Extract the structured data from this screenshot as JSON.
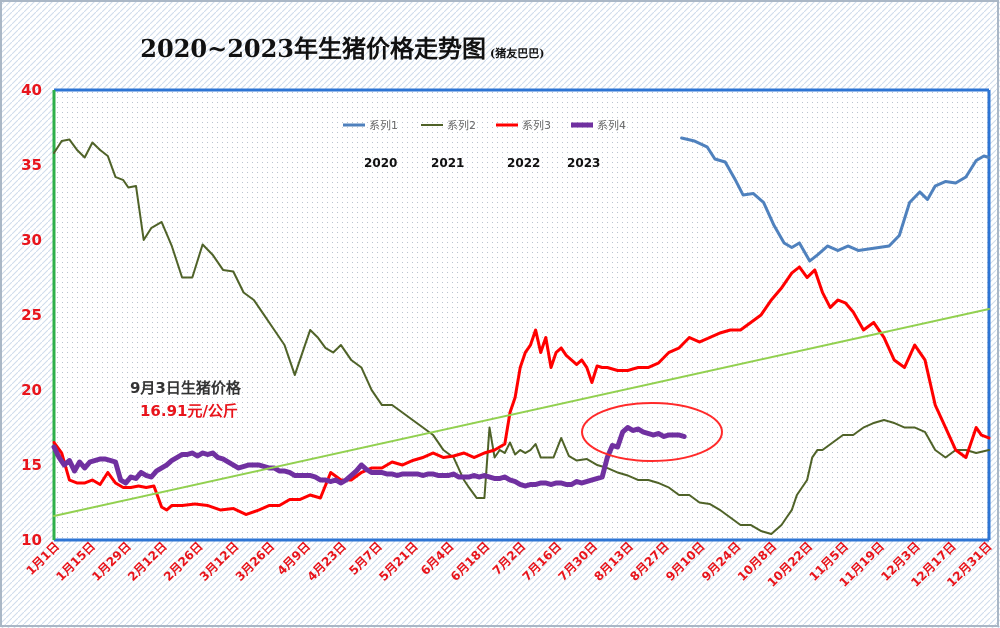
{
  "chart_data": {
    "type": "line",
    "title": "2020~2023年生猪价格走势图",
    "subtitle": "(猪友巴巴)",
    "ylim": [
      10,
      40
    ],
    "yticks": [
      "10",
      "15",
      "20",
      "25",
      "30",
      "35",
      "40"
    ],
    "xlim": [
      0,
      365
    ],
    "xticks": [
      {
        "label": "1月1日",
        "x": 0
      },
      {
        "label": "1月15日",
        "x": 14
      },
      {
        "label": "1月29日",
        "x": 28
      },
      {
        "label": "2月12日",
        "x": 42
      },
      {
        "label": "2月26日",
        "x": 56
      },
      {
        "label": "3月12日",
        "x": 70
      },
      {
        "label": "3月26日",
        "x": 84
      },
      {
        "label": "4月9日",
        "x": 98
      },
      {
        "label": "4月23日",
        "x": 112
      },
      {
        "label": "5月7日",
        "x": 126
      },
      {
        "label": "5月21日",
        "x": 140
      },
      {
        "label": "6月4日",
        "x": 154
      },
      {
        "label": "6月18日",
        "x": 168
      },
      {
        "label": "7月2日",
        "x": 182
      },
      {
        "label": "7月16日",
        "x": 196
      },
      {
        "label": "7月30日",
        "x": 210
      },
      {
        "label": "8月13日",
        "x": 224
      },
      {
        "label": "8月27日",
        "x": 238
      },
      {
        "label": "9月10日",
        "x": 252
      },
      {
        "label": "9月24日",
        "x": 266
      },
      {
        "label": "10月8日",
        "x": 280
      },
      {
        "label": "10月22日",
        "x": 294
      },
      {
        "label": "11月5日",
        "x": 308
      },
      {
        "label": "11月19日",
        "x": 322
      },
      {
        "label": "12月3日",
        "x": 336
      },
      {
        "label": "12月17日",
        "x": 350
      },
      {
        "label": "12月31日",
        "x": 364
      }
    ],
    "legend": {
      "placement": "top-center",
      "years": [
        "2020",
        "2021",
        "2022",
        "2023"
      ]
    },
    "series": [
      {
        "name": "系列1",
        "color": "#4f81bd",
        "width": 3,
        "x": [
          245,
          250,
          255,
          258,
          262,
          266,
          269,
          273,
          277,
          281,
          285,
          288,
          291,
          295,
          298,
          302,
          306,
          310,
          314,
          318,
          322,
          326,
          330,
          334,
          338,
          341,
          344,
          348,
          352,
          356,
          360,
          363,
          365
        ],
        "y": [
          36.8,
          36.6,
          36.2,
          35.4,
          35.2,
          34.0,
          33.0,
          33.1,
          32.5,
          31.0,
          29.8,
          29.5,
          29.8,
          28.6,
          29.0,
          29.6,
          29.3,
          29.6,
          29.3,
          29.4,
          29.5,
          29.6,
          30.3,
          32.5,
          33.2,
          32.7,
          33.6,
          33.9,
          33.8,
          34.2,
          35.3,
          35.6,
          35.5
        ]
      },
      {
        "name": "系列2",
        "color": "#4f6228",
        "width": 2,
        "x": [
          0,
          3,
          6,
          9,
          12,
          15,
          18,
          21,
          24,
          27,
          29,
          32,
          35,
          38,
          42,
          46,
          50,
          54,
          58,
          62,
          66,
          70,
          74,
          78,
          82,
          86,
          90,
          94,
          98,
          100,
          103,
          106,
          109,
          112,
          116,
          120,
          124,
          128,
          132,
          136,
          140,
          144,
          148,
          152,
          156,
          160,
          162,
          165,
          168,
          170,
          172,
          174,
          176,
          178,
          180,
          182,
          184,
          186,
          188,
          190,
          192,
          195,
          198,
          201,
          204,
          208,
          212,
          216,
          220,
          224,
          228,
          232,
          236,
          240,
          244,
          248,
          252,
          256,
          260,
          264,
          268,
          272,
          276,
          280,
          284,
          286,
          288,
          290,
          292,
          294,
          296,
          298,
          300,
          304,
          308,
          312,
          316,
          320,
          324,
          328,
          332,
          336,
          340,
          344,
          348,
          352,
          356,
          360,
          365
        ],
        "y": [
          35.8,
          36.6,
          36.7,
          36.0,
          35.5,
          36.5,
          36.0,
          35.6,
          34.2,
          34.0,
          33.5,
          33.6,
          30.0,
          30.8,
          31.2,
          29.6,
          27.5,
          27.5,
          29.7,
          29.0,
          28.0,
          27.9,
          26.5,
          26.0,
          25.0,
          24.0,
          23.0,
          21.0,
          23.0,
          24.0,
          23.5,
          22.8,
          22.5,
          23.0,
          22.0,
          21.5,
          20.0,
          19.0,
          19.0,
          18.5,
          18.0,
          17.5,
          17.0,
          16.0,
          15.5,
          14.0,
          13.5,
          12.8,
          12.8,
          17.5,
          15.5,
          16.0,
          15.8,
          16.5,
          15.7,
          16.0,
          15.8,
          16.0,
          16.4,
          15.5,
          15.5,
          15.5,
          16.8,
          15.6,
          15.3,
          15.4,
          15.0,
          14.8,
          14.5,
          14.3,
          14.0,
          14.0,
          13.8,
          13.5,
          13.0,
          13.0,
          12.5,
          12.4,
          12.0,
          11.5,
          11.0,
          11.0,
          10.6,
          10.4,
          11.0,
          11.5,
          12.0,
          13.0,
          13.5,
          14.0,
          15.5,
          16.0,
          16.0,
          16.5,
          17.0,
          17.0,
          17.5,
          17.8,
          18.0,
          17.8,
          17.5,
          17.5,
          17.2,
          16.0,
          15.5,
          16.0,
          16.0,
          15.8,
          16.0
        ]
      },
      {
        "name": "系列3",
        "color": "#ff0000",
        "width": 3,
        "x": [
          0,
          3,
          6,
          9,
          12,
          15,
          18,
          21,
          24,
          27,
          30,
          33,
          36,
          39,
          42,
          44,
          46,
          50,
          55,
          60,
          65,
          70,
          75,
          80,
          84,
          88,
          92,
          96,
          100,
          104,
          108,
          112,
          116,
          120,
          124,
          128,
          132,
          136,
          140,
          144,
          148,
          152,
          156,
          160,
          164,
          168,
          172,
          176,
          178,
          180,
          182,
          184,
          186,
          188,
          190,
          192,
          194,
          196,
          198,
          200,
          202,
          204,
          206,
          208,
          210,
          212,
          214,
          216,
          220,
          224,
          228,
          232,
          236,
          240,
          244,
          248,
          252,
          256,
          260,
          264,
          268,
          272,
          276,
          280,
          284,
          288,
          291,
          294,
          297,
          300,
          303,
          306,
          309,
          312,
          316,
          320,
          324,
          328,
          332,
          336,
          340,
          344,
          348,
          352,
          356,
          358,
          360,
          362,
          365
        ],
        "y": [
          16.5,
          15.8,
          14.0,
          13.8,
          13.8,
          14.0,
          13.7,
          14.5,
          13.8,
          13.5,
          13.5,
          13.6,
          13.5,
          13.6,
          12.2,
          12.0,
          12.3,
          12.3,
          12.4,
          12.3,
          12.0,
          12.1,
          11.7,
          12.0,
          12.3,
          12.3,
          12.7,
          12.7,
          13.0,
          12.8,
          14.5,
          14.0,
          14.0,
          14.5,
          14.8,
          14.8,
          15.2,
          15.0,
          15.3,
          15.5,
          15.8,
          15.5,
          15.6,
          15.8,
          15.5,
          15.8,
          16.0,
          16.4,
          18.5,
          19.5,
          21.5,
          22.5,
          23.0,
          24.0,
          22.5,
          23.5,
          21.5,
          22.5,
          22.8,
          22.3,
          22.0,
          21.7,
          22.0,
          21.5,
          20.5,
          21.6,
          21.5,
          21.5,
          21.3,
          21.3,
          21.5,
          21.5,
          21.8,
          22.5,
          22.8,
          23.5,
          23.2,
          23.5,
          23.8,
          24.0,
          24.0,
          24.5,
          25.0,
          26.0,
          26.8,
          27.8,
          28.2,
          27.5,
          28.0,
          26.5,
          25.5,
          26.0,
          25.8,
          25.2,
          24.0,
          24.5,
          23.5,
          22.0,
          21.5,
          23.0,
          22.0,
          19.0,
          17.5,
          16.0,
          15.5,
          16.5,
          17.5,
          17.0,
          16.8
        ]
      },
      {
        "name": "系列4",
        "color": "#7030a0",
        "width": 5,
        "x": [
          0,
          2,
          4,
          6,
          8,
          10,
          12,
          14,
          16,
          18,
          20,
          22,
          24,
          26,
          28,
          30,
          32,
          34,
          36,
          38,
          40,
          42,
          44,
          46,
          48,
          50,
          52,
          54,
          56,
          58,
          60,
          62,
          64,
          66,
          68,
          70,
          72,
          74,
          76,
          78,
          80,
          82,
          84,
          86,
          88,
          90,
          92,
          94,
          96,
          98,
          100,
          102,
          104,
          106,
          108,
          110,
          112,
          114,
          116,
          118,
          120,
          122,
          124,
          126,
          128,
          130,
          132,
          134,
          136,
          138,
          140,
          142,
          144,
          146,
          148,
          150,
          152,
          154,
          156,
          158,
          160,
          162,
          164,
          166,
          168,
          170,
          172,
          174,
          176,
          178,
          180,
          182,
          184,
          186,
          188,
          190,
          192,
          194,
          196,
          198,
          200,
          202,
          204,
          206,
          208,
          210,
          212,
          214,
          216,
          218,
          220,
          222,
          224,
          226,
          228,
          230,
          232,
          234,
          236,
          238,
          240,
          242,
          244,
          246
        ],
        "y": [
          16.2,
          15.5,
          15.0,
          15.3,
          14.6,
          15.2,
          14.8,
          15.2,
          15.3,
          15.4,
          15.4,
          15.3,
          15.2,
          14.0,
          13.8,
          14.2,
          14.1,
          14.5,
          14.3,
          14.2,
          14.6,
          14.8,
          15.0,
          15.3,
          15.5,
          15.7,
          15.7,
          15.8,
          15.6,
          15.8,
          15.7,
          15.8,
          15.5,
          15.4,
          15.2,
          15.0,
          14.8,
          14.9,
          15.0,
          15.0,
          15.0,
          14.9,
          14.8,
          14.8,
          14.6,
          14.6,
          14.5,
          14.3,
          14.3,
          14.3,
          14.3,
          14.2,
          14.0,
          14.0,
          13.9,
          14.0,
          13.8,
          14.0,
          14.3,
          14.6,
          15.0,
          14.7,
          14.5,
          14.5,
          14.5,
          14.4,
          14.4,
          14.3,
          14.4,
          14.4,
          14.4,
          14.4,
          14.3,
          14.4,
          14.4,
          14.3,
          14.3,
          14.3,
          14.4,
          14.2,
          14.2,
          14.2,
          14.3,
          14.2,
          14.3,
          14.2,
          14.1,
          14.1,
          14.2,
          14.0,
          13.9,
          13.7,
          13.6,
          13.7,
          13.7,
          13.8,
          13.8,
          13.7,
          13.8,
          13.8,
          13.7,
          13.7,
          13.9,
          13.8,
          13.9,
          14.0,
          14.1,
          14.2,
          15.5,
          16.3,
          16.2,
          17.2,
          17.5,
          17.3,
          17.4,
          17.2,
          17.1,
          17.0,
          17.1,
          16.9,
          17.0,
          17.0,
          17.0,
          16.9
        ]
      },
      {
        "color": "#92d050",
        "width": 2,
        "x": [
          0,
          365
        ],
        "y": [
          11.6,
          25.4
        ]
      }
    ],
    "annotations": {
      "line1": "9月3日生猪价格",
      "line2": "16.91元/公斤"
    }
  }
}
